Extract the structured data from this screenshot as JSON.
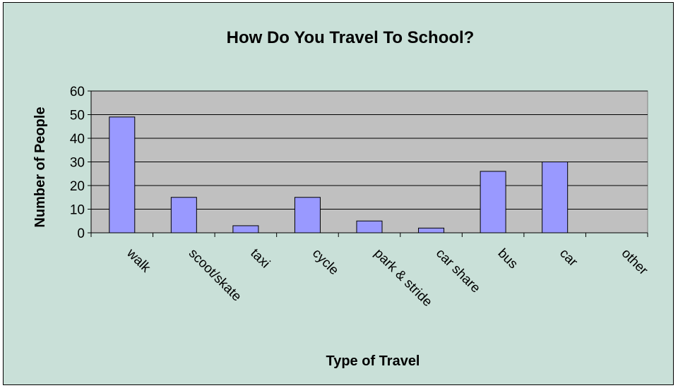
{
  "chart_data": {
    "type": "bar",
    "title": "How Do You Travel To School?",
    "xlabel": "Type of Travel",
    "ylabel": "Number of People",
    "categories": [
      "walk",
      "scoot/skate",
      "taxi",
      "cycle",
      "park & stride",
      "car share",
      "bus",
      "car",
      "other"
    ],
    "values": [
      49,
      15,
      3,
      15,
      5,
      2,
      26,
      30,
      0
    ],
    "ylim": [
      0,
      60
    ],
    "yticks": [
      0,
      10,
      20,
      30,
      40,
      50,
      60
    ],
    "grid": true,
    "legend": "none",
    "colors": {
      "background": "#c9e0d8",
      "plot_area": "#c0c0c0",
      "bar_fill": "#9999ff",
      "bar_stroke": "#000000"
    }
  }
}
